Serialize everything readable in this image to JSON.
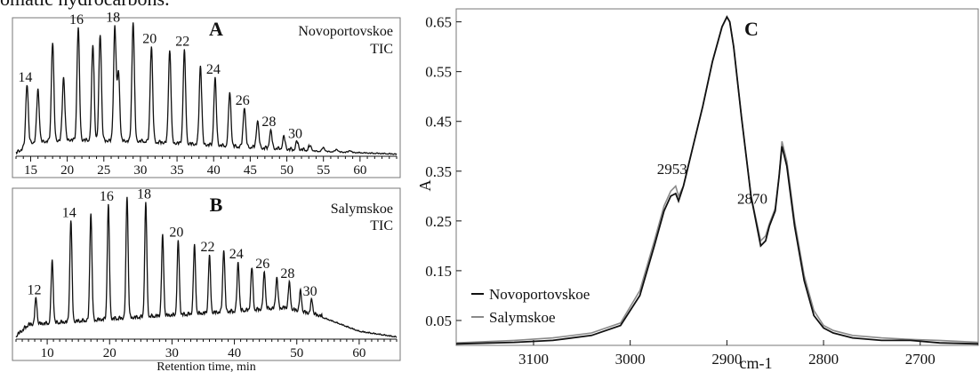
{
  "header_text": "omatic hydrocarbons.",
  "chart_data": [
    {
      "type": "line",
      "panel_letter": "A",
      "label_lines": [
        "Novoportovskoe",
        "TIC"
      ],
      "xlabel": "",
      "xlim": [
        13,
        65
      ],
      "x_ticks": [
        15,
        20,
        25,
        30,
        35,
        40,
        45,
        50,
        55,
        60
      ],
      "peaks": [
        {
          "x": 14.5,
          "h": 0.46,
          "label": "14"
        },
        {
          "x": 16.0,
          "h": 0.4
        },
        {
          "x": 18.0,
          "h": 0.74
        },
        {
          "x": 19.5,
          "h": 0.48
        },
        {
          "x": 21.5,
          "h": 0.84,
          "label": "16"
        },
        {
          "x": 23.5,
          "h": 0.72
        },
        {
          "x": 24.5,
          "h": 0.8
        },
        {
          "x": 26.5,
          "h": 0.86,
          "label": "18"
        },
        {
          "x": 27.0,
          "h": 0.52
        },
        {
          "x": 29.0,
          "h": 0.9
        },
        {
          "x": 31.5,
          "h": 0.72,
          "label": "20"
        },
        {
          "x": 34.0,
          "h": 0.7
        },
        {
          "x": 36.0,
          "h": 0.7,
          "label": "22"
        },
        {
          "x": 38.2,
          "h": 0.6
        },
        {
          "x": 40.2,
          "h": 0.5,
          "label": "24"
        },
        {
          "x": 42.2,
          "h": 0.4
        },
        {
          "x": 44.2,
          "h": 0.3,
          "label": "26"
        },
        {
          "x": 46.0,
          "h": 0.2
        },
        {
          "x": 47.8,
          "h": 0.13,
          "label": "28"
        },
        {
          "x": 49.6,
          "h": 0.09
        },
        {
          "x": 51.4,
          "h": 0.06,
          "label": "30"
        },
        {
          "x": 53.2,
          "h": 0.04
        },
        {
          "x": 55.0,
          "h": 0.03
        },
        {
          "x": 56.8,
          "h": 0.02
        },
        {
          "x": 58.6,
          "h": 0.015
        }
      ],
      "baseline": [
        [
          13,
          0.0
        ],
        [
          15,
          0.08
        ],
        [
          20,
          0.1
        ],
        [
          30,
          0.09
        ],
        [
          40,
          0.06
        ],
        [
          50,
          0.03
        ],
        [
          60,
          0.01
        ],
        [
          65,
          0.0
        ]
      ]
    },
    {
      "type": "line",
      "panel_letter": "B",
      "label_lines": [
        "Salymskoe",
        "TIC"
      ],
      "xlabel": "Retention time, min",
      "xlim": [
        5,
        66
      ],
      "x_ticks": [
        10,
        20,
        30,
        40,
        50,
        60
      ],
      "peaks": [
        {
          "x": 8.2,
          "h": 0.18,
          "label": "12"
        },
        {
          "x": 10.8,
          "h": 0.44
        },
        {
          "x": 13.8,
          "h": 0.72,
          "label": "14"
        },
        {
          "x": 17.0,
          "h": 0.76
        },
        {
          "x": 19.8,
          "h": 0.8,
          "label": "16"
        },
        {
          "x": 22.8,
          "h": 0.86
        },
        {
          "x": 25.8,
          "h": 0.8,
          "label": "18"
        },
        {
          "x": 28.5,
          "h": 0.56
        },
        {
          "x": 31.0,
          "h": 0.52,
          "label": "20"
        },
        {
          "x": 33.6,
          "h": 0.48
        },
        {
          "x": 36.0,
          "h": 0.4,
          "label": "22"
        },
        {
          "x": 38.3,
          "h": 0.44
        },
        {
          "x": 40.6,
          "h": 0.34,
          "label": "24"
        },
        {
          "x": 42.8,
          "h": 0.3
        },
        {
          "x": 44.8,
          "h": 0.26,
          "label": "26"
        },
        {
          "x": 46.8,
          "h": 0.22
        },
        {
          "x": 48.8,
          "h": 0.18,
          "label": "28"
        },
        {
          "x": 50.6,
          "h": 0.14
        },
        {
          "x": 52.4,
          "h": 0.1,
          "label": "30"
        }
      ],
      "baseline": [
        [
          5,
          0.0
        ],
        [
          7,
          0.08
        ],
        [
          20,
          0.12
        ],
        [
          35,
          0.16
        ],
        [
          48,
          0.2
        ],
        [
          54,
          0.14
        ],
        [
          60,
          0.04
        ],
        [
          66,
          0.0
        ]
      ]
    },
    {
      "type": "line",
      "panel_letter": "C",
      "xlabel": "cm-1",
      "ylabel": "A",
      "xlim": [
        3180,
        2640
      ],
      "ylim": [
        0.0,
        0.66
      ],
      "x_ticks": [
        3100,
        3000,
        2900,
        2800,
        2700
      ],
      "y_ticks": [
        0.05,
        0.15,
        0.25,
        0.35,
        0.45,
        0.55,
        0.65
      ],
      "y_tick_labels": [
        "0.05",
        "0.15",
        "0.25",
        "0.35",
        "0.45",
        "0.55",
        "0.65"
      ],
      "peak_labels": [
        {
          "x": 2953,
          "y": 0.33,
          "text": "2953"
        },
        {
          "x": 2870,
          "y": 0.27,
          "text": "2870"
        }
      ],
      "legend": "bottom-left",
      "series": [
        {
          "name": "Novoportovskoe",
          "color": "#111111",
          "x": [
            3180,
            3120,
            3080,
            3040,
            3010,
            2990,
            2975,
            2965,
            2958,
            2953,
            2950,
            2945,
            2935,
            2925,
            2915,
            2905,
            2900,
            2897,
            2893,
            2885,
            2875,
            2865,
            2860,
            2856,
            2850,
            2846,
            2843,
            2838,
            2830,
            2820,
            2810,
            2800,
            2790,
            2770,
            2740,
            2710,
            2680,
            2640
          ],
          "y": [
            0.003,
            0.006,
            0.01,
            0.02,
            0.04,
            0.1,
            0.2,
            0.27,
            0.3,
            0.305,
            0.29,
            0.32,
            0.4,
            0.48,
            0.57,
            0.64,
            0.66,
            0.65,
            0.6,
            0.46,
            0.3,
            0.2,
            0.21,
            0.24,
            0.27,
            0.34,
            0.4,
            0.36,
            0.24,
            0.13,
            0.06,
            0.035,
            0.025,
            0.015,
            0.01,
            0.01,
            0.005,
            0.003
          ]
        },
        {
          "name": "Salymskoe",
          "color": "#8a8a8a",
          "x": [
            3180,
            3120,
            3080,
            3040,
            3010,
            2990,
            2975,
            2965,
            2958,
            2953,
            2950,
            2945,
            2935,
            2925,
            2915,
            2905,
            2900,
            2897,
            2893,
            2885,
            2875,
            2865,
            2860,
            2856,
            2850,
            2846,
            2843,
            2838,
            2830,
            2820,
            2810,
            2800,
            2790,
            2770,
            2740,
            2710,
            2680,
            2640
          ],
          "y": [
            0.005,
            0.01,
            0.015,
            0.025,
            0.045,
            0.11,
            0.21,
            0.28,
            0.31,
            0.32,
            0.3,
            0.32,
            0.4,
            0.48,
            0.57,
            0.64,
            0.66,
            0.65,
            0.6,
            0.46,
            0.3,
            0.21,
            0.22,
            0.245,
            0.275,
            0.34,
            0.41,
            0.37,
            0.25,
            0.14,
            0.07,
            0.04,
            0.03,
            0.02,
            0.015,
            0.012,
            0.01,
            0.006
          ]
        }
      ]
    }
  ]
}
